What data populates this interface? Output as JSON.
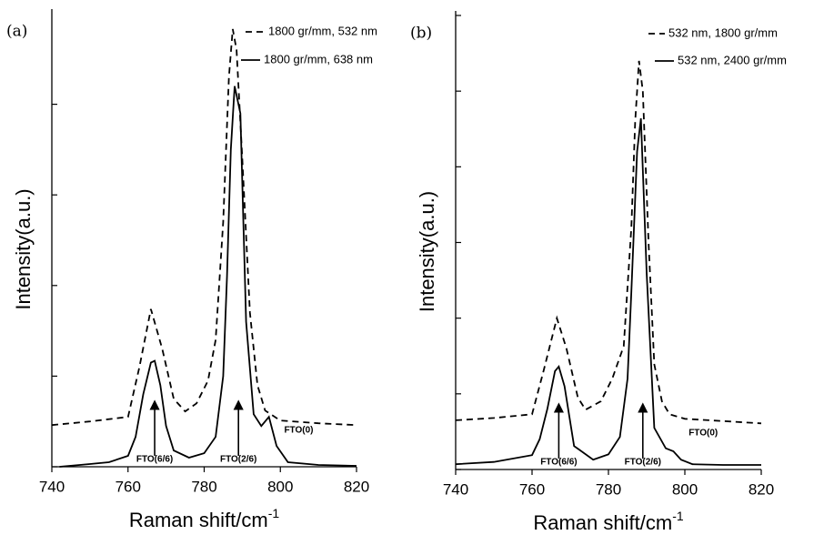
{
  "chart_data": [
    {
      "type": "line",
      "panel_label": "(a)",
      "xlabel": {
        "text": "Raman shift/cm",
        "sup": "-1"
      },
      "ylabel": "Intensity(a.u.)",
      "xlim": [
        740,
        820
      ],
      "xticks": [
        740,
        760,
        780,
        800,
        820
      ],
      "ylim": [
        0,
        5
      ],
      "yticks": [
        0,
        1,
        2,
        3,
        4
      ],
      "series": [
        {
          "name": "1800 gr/mm, 532 nm",
          "color": "#000",
          "dash": true,
          "x": [
            740,
            750,
            760,
            763,
            766,
            769,
            772,
            775,
            778,
            781,
            783,
            785,
            786.5,
            787.5,
            788.5,
            790,
            792,
            794,
            796,
            800,
            810,
            820
          ],
          "values": [
            0.46,
            0.5,
            0.55,
            1.1,
            1.74,
            1.3,
            0.75,
            0.61,
            0.7,
            0.95,
            1.4,
            2.7,
            4.3,
            4.83,
            4.6,
            3.4,
            1.7,
            0.9,
            0.62,
            0.51,
            0.48,
            0.46
          ]
        },
        {
          "name": "1800 gr/mm, 638 nm",
          "color": "#000",
          "dash": false,
          "x": [
            742,
            750,
            755,
            760,
            762,
            764,
            766,
            767,
            768.5,
            770,
            772,
            776,
            780,
            783,
            785,
            786,
            787,
            788,
            789.5,
            791,
            793,
            795,
            797,
            799,
            802,
            810,
            820
          ],
          "values": [
            0.0,
            0.03,
            0.05,
            0.12,
            0.33,
            0.8,
            1.15,
            1.17,
            0.9,
            0.45,
            0.18,
            0.1,
            0.15,
            0.33,
            1.0,
            2.1,
            3.5,
            4.2,
            3.9,
            1.6,
            0.58,
            0.45,
            0.55,
            0.23,
            0.05,
            0.02,
            0.01
          ]
        }
      ],
      "annotations": [
        {
          "text": "FTO(6/6)",
          "x": 767,
          "arrow": true
        },
        {
          "text": "FTO(2/6)",
          "x": 789,
          "arrow": true
        },
        {
          "text": "FTO(0)",
          "x": 801,
          "arrow": false
        }
      ]
    },
    {
      "type": "line",
      "panel_label": "(b)",
      "xlabel": {
        "text": "Raman shift/cm",
        "sup": "-1"
      },
      "ylabel": "Intensity(a.u.)",
      "xlim": [
        740,
        820
      ],
      "xticks": [
        740,
        760,
        780,
        800,
        820
      ],
      "ylim": [
        0,
        6
      ],
      "yticks": [
        0,
        1,
        2,
        3,
        4,
        5,
        6
      ],
      "series": [
        {
          "name": "532 nm, 1800 gr/mm",
          "color": "#000",
          "dash": true,
          "x": [
            740,
            750,
            760,
            763,
            766.5,
            769,
            772,
            774,
            778,
            781,
            784,
            786,
            787,
            788,
            789,
            790.5,
            792,
            794,
            796,
            800,
            810,
            820
          ],
          "values": [
            0.65,
            0.68,
            0.73,
            1.3,
            2.0,
            1.6,
            0.95,
            0.79,
            0.9,
            1.2,
            1.63,
            3.2,
            4.6,
            5.4,
            5.0,
            3.0,
            1.39,
            0.9,
            0.73,
            0.67,
            0.64,
            0.61
          ]
        },
        {
          "name": "532 nm, 2400 gr/mm",
          "color": "#000",
          "dash": false,
          "x": [
            740,
            750,
            760,
            762,
            764,
            766,
            767,
            768.5,
            771,
            776,
            780,
            783,
            785,
            786,
            787.5,
            788.5,
            790,
            792,
            795,
            797,
            799,
            802,
            810,
            820
          ],
          "values": [
            0.07,
            0.1,
            0.19,
            0.4,
            0.8,
            1.3,
            1.36,
            1.1,
            0.31,
            0.13,
            0.2,
            0.43,
            1.2,
            2.35,
            4.2,
            4.64,
            2.6,
            0.55,
            0.28,
            0.24,
            0.13,
            0.07,
            0.06,
            0.06
          ]
        }
      ],
      "annotations": [
        {
          "text": "FTO(6/6)",
          "x": 767,
          "arrow": true
        },
        {
          "text": "FTO(2/6)",
          "x": 789,
          "arrow": true
        },
        {
          "text": "FTO(0)",
          "x": 801,
          "arrow": false
        }
      ]
    }
  ]
}
